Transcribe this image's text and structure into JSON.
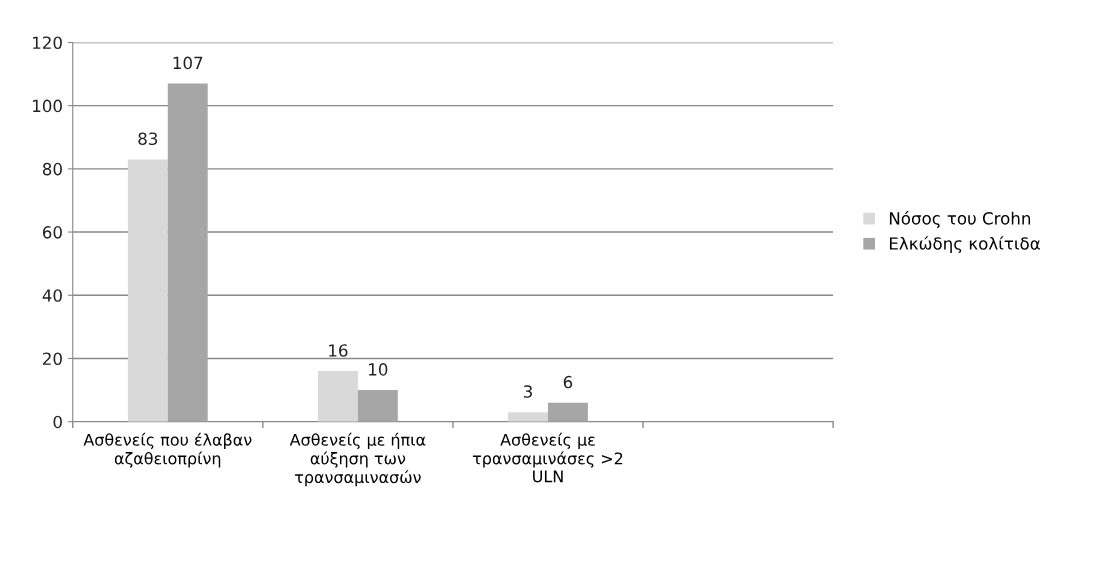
{
  "chart_data": {
    "type": "bar",
    "categories": [
      "Ασθενείς που έλαβαν\nαζαθειοπρίνη",
      "Ασθενείς με ήπια\nαύξηση των\nτρανσαμινασών",
      "Ασθενείς με\nτρανσαμινάσες >2\nULN",
      null
    ],
    "series": [
      {
        "name": "Νόσος του Crohn",
        "color": "#d9d9d9",
        "values": [
          83,
          16,
          3,
          null
        ]
      },
      {
        "name": "Ελκώδης κολίτιδα",
        "color": "#a6a6a6",
        "values": [
          107,
          10,
          6,
          null
        ]
      }
    ],
    "ylim": [
      0,
      120
    ],
    "yticks": [
      0,
      20,
      40,
      60,
      80,
      100,
      120
    ],
    "grid": "y",
    "legend": "right",
    "data_labels": true
  }
}
